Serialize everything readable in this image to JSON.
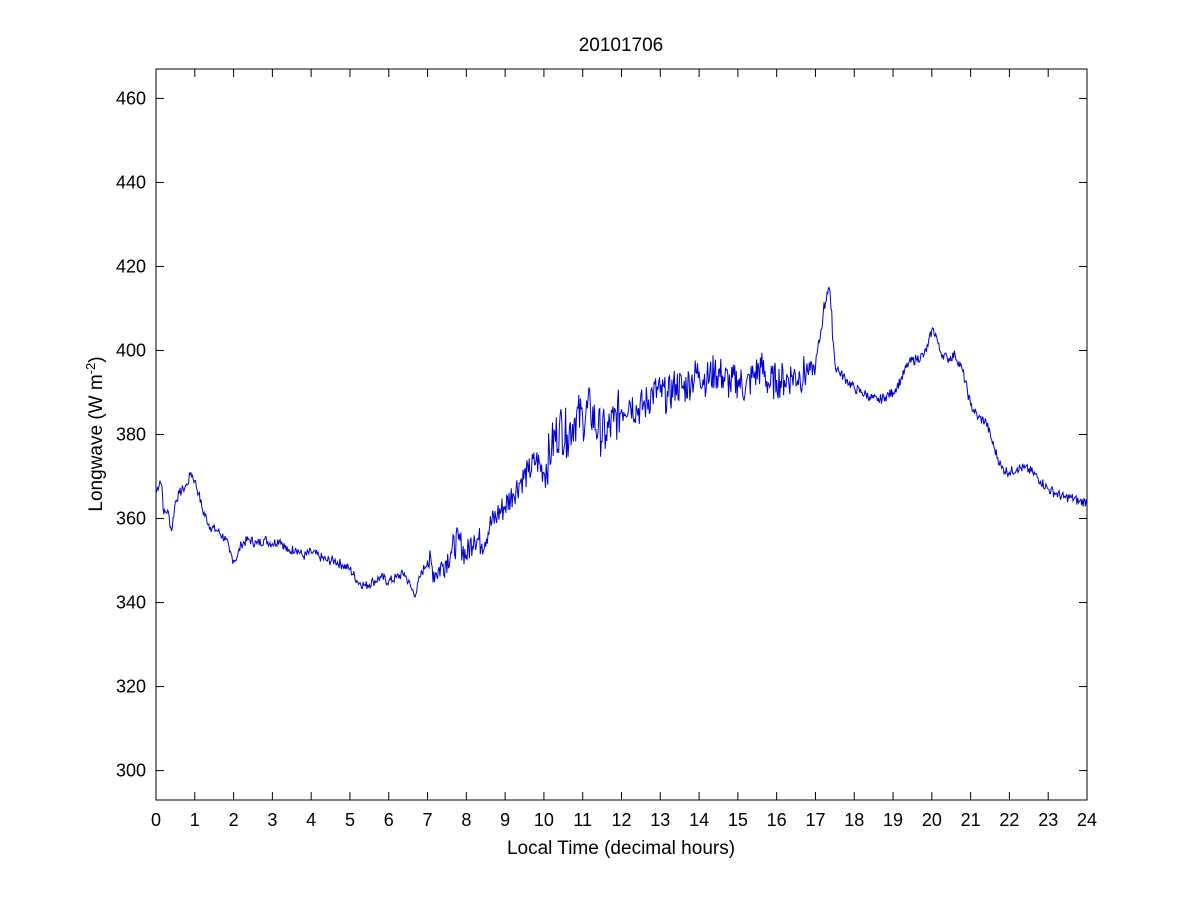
{
  "chart_data": {
    "type": "line",
    "title": "20101706",
    "xlabel": "Local Time (decimal hours)",
    "ylabel": {
      "prefix": "Longwave (W m",
      "superscript": "-2",
      "suffix": ")"
    },
    "xlim": [
      0,
      24
    ],
    "ylim": [
      293,
      467
    ],
    "xticks": [
      0,
      1,
      2,
      3,
      4,
      5,
      6,
      7,
      8,
      9,
      10,
      11,
      12,
      13,
      14,
      15,
      16,
      17,
      18,
      19,
      20,
      21,
      22,
      23,
      24
    ],
    "yticks": [
      300,
      320,
      340,
      360,
      380,
      400,
      420,
      440,
      460
    ],
    "grid": false,
    "legend": "none",
    "series": [
      {
        "color": "#0000cc",
        "x": [
          0.0,
          0.1,
          0.15,
          0.2,
          0.3,
          0.4,
          0.5,
          0.6,
          0.7,
          0.8,
          0.9,
          1.0,
          1.1,
          1.2,
          1.4,
          1.6,
          1.8,
          1.9,
          2.0,
          2.1,
          2.2,
          2.4,
          2.6,
          2.8,
          3.0,
          3.2,
          3.4,
          3.6,
          3.8,
          4.0,
          4.2,
          4.4,
          4.6,
          4.8,
          5.0,
          5.2,
          5.4,
          5.6,
          5.8,
          6.0,
          6.2,
          6.4,
          6.6,
          6.7,
          6.8,
          7.0,
          7.2,
          7.4,
          7.6,
          7.8,
          8.0,
          8.2,
          8.4,
          8.6,
          8.8,
          9.0,
          9.2,
          9.4,
          9.6,
          9.8,
          10.0,
          10.2,
          10.4,
          10.6,
          10.8,
          11.0,
          11.2,
          11.4,
          11.6,
          11.8,
          12.0,
          12.2,
          12.4,
          12.6,
          12.8,
          13.0,
          13.2,
          13.4,
          13.6,
          13.8,
          14.0,
          14.2,
          14.4,
          14.6,
          14.8,
          15.0,
          15.2,
          15.4,
          15.6,
          15.8,
          16.0,
          16.2,
          16.4,
          16.6,
          16.8,
          17.0,
          17.1,
          17.2,
          17.3,
          17.35,
          17.4,
          17.5,
          17.6,
          17.8,
          18.0,
          18.2,
          18.4,
          18.6,
          18.8,
          19.0,
          19.2,
          19.4,
          19.6,
          19.8,
          19.9,
          20.0,
          20.1,
          20.2,
          20.4,
          20.6,
          20.8,
          21.0,
          21.2,
          21.4,
          21.6,
          21.8,
          22.0,
          22.2,
          22.4,
          22.6,
          22.8,
          23.0,
          23.2,
          23.4,
          23.6,
          23.8,
          24.0
        ],
        "y": [
          366,
          369,
          368,
          361,
          362,
          357,
          364,
          366,
          367,
          368,
          371,
          369,
          366,
          362,
          358,
          357,
          355,
          352,
          350,
          351,
          354,
          355,
          354,
          355,
          354,
          355,
          352,
          353,
          351,
          352,
          351,
          350,
          350,
          349,
          348,
          345,
          344,
          345,
          346,
          345,
          346,
          347,
          343,
          342,
          346,
          350,
          347,
          349,
          352,
          355,
          351,
          356,
          354,
          358,
          361,
          363,
          366,
          369,
          371,
          374,
          371,
          377,
          382,
          380,
          384,
          384,
          386,
          381,
          380,
          383,
          386,
          388,
          386,
          387,
          390,
          390,
          389,
          392,
          391,
          393,
          395,
          393,
          395,
          394,
          392,
          393,
          391,
          394,
          396,
          392,
          393,
          393,
          394,
          394,
          395,
          396,
          402,
          409,
          414,
          415,
          410,
          397,
          395,
          393,
          391,
          390,
          389,
          388,
          389,
          390,
          393,
          397,
          398,
          399,
          401,
          405,
          404,
          400,
          398,
          399,
          395,
          387,
          384,
          383,
          377,
          372,
          371,
          372,
          372,
          371,
          369,
          367,
          366,
          365,
          365,
          364,
          364
        ]
      }
    ]
  }
}
